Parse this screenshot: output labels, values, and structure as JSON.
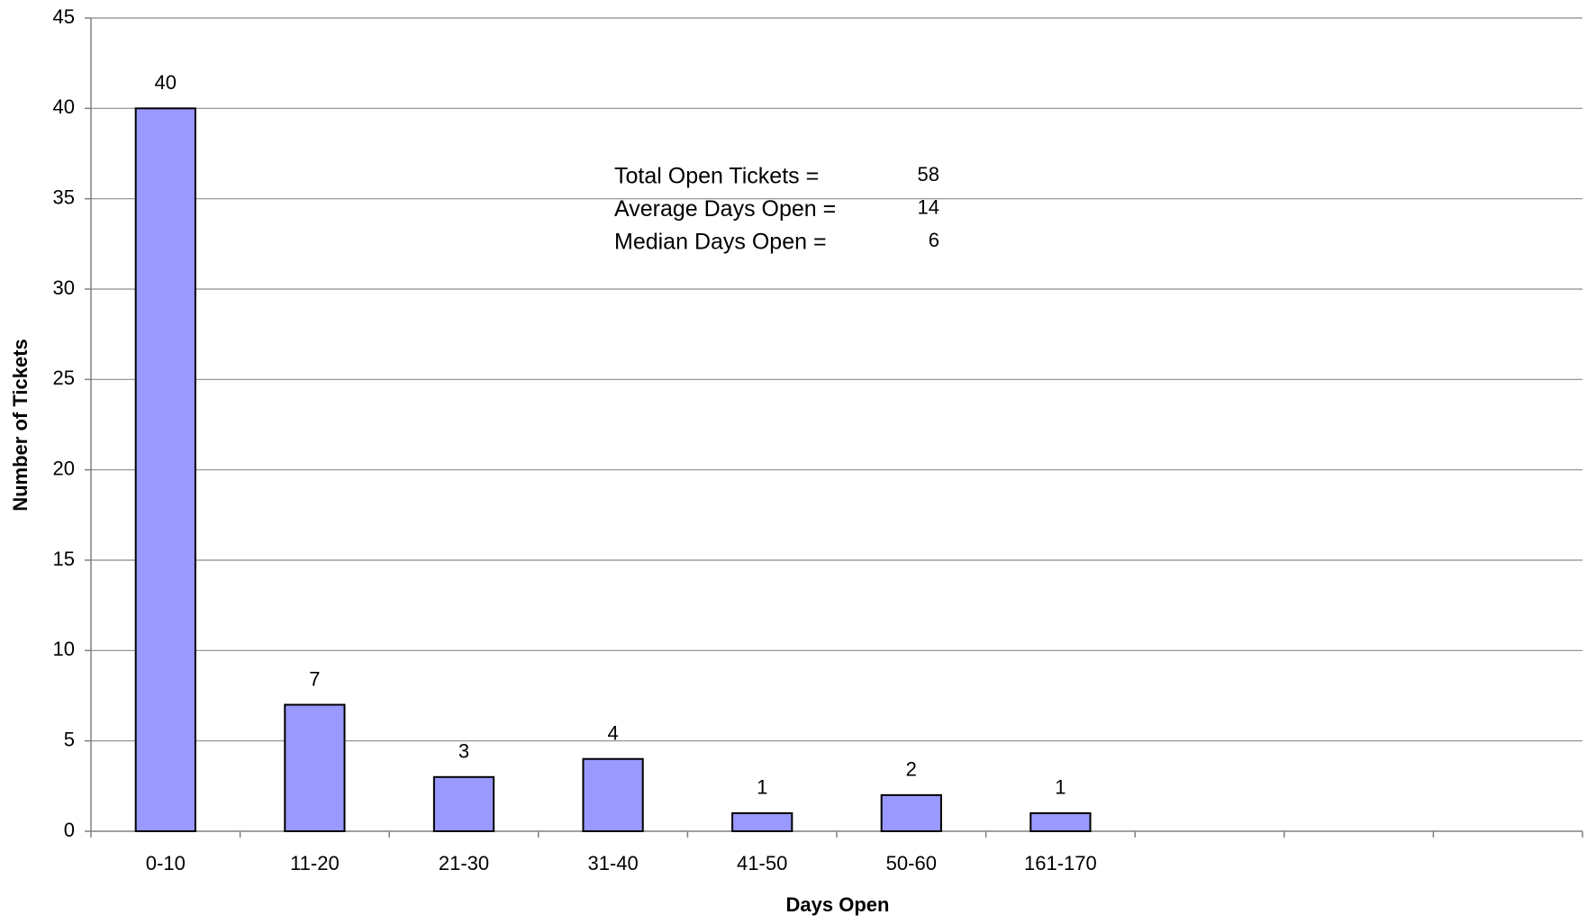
{
  "chart_data": {
    "type": "bar",
    "x_label": "Days Open",
    "y_label": "Number of Tickets",
    "categories": [
      "0-10",
      "11-20",
      "21-30",
      "31-40",
      "41-50",
      "50-60",
      "161-170",
      null,
      null,
      null
    ],
    "values": [
      40,
      7,
      3,
      4,
      1,
      2,
      1,
      null,
      null,
      null
    ],
    "color": "#9999ff",
    "ylim": [
      0,
      45
    ],
    "yticks": [
      0,
      5,
      10,
      15,
      20,
      25,
      30,
      35,
      40,
      45
    ],
    "grid": true,
    "annotations": [
      {
        "text": "Total Open Tickets =",
        "value": 58
      },
      {
        "text": "Average Days Open =",
        "value": 14
      },
      {
        "text": "Median Days Open =",
        "value": 6
      }
    ]
  }
}
